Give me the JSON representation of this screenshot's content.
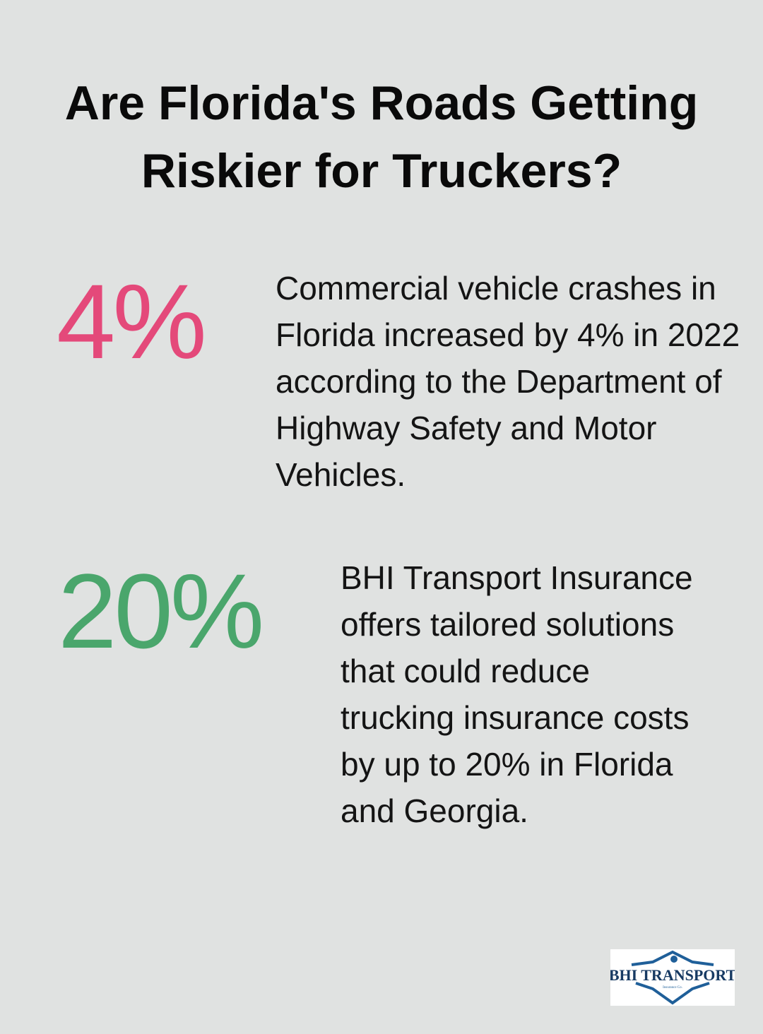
{
  "title": "Are Florida's Roads Getting Riskier for Truckers?",
  "stats": [
    {
      "value": "4%",
      "color": "#e4497a",
      "text": "Commercial vehicle crashes in Florida increased by 4% in 2022 according to the Department of Highway Safety and Motor Vehicles."
    },
    {
      "value": "20%",
      "color": "#4aa66c",
      "text": "BHI Transport Insurance offers tailored solutions that could reduce trucking insurance costs by up to 20% in Florida and Georgia."
    }
  ],
  "logo": {
    "name": "BHI TRANSPORT",
    "tagline": "Insurance Co.",
    "color": "#1f5f99"
  }
}
